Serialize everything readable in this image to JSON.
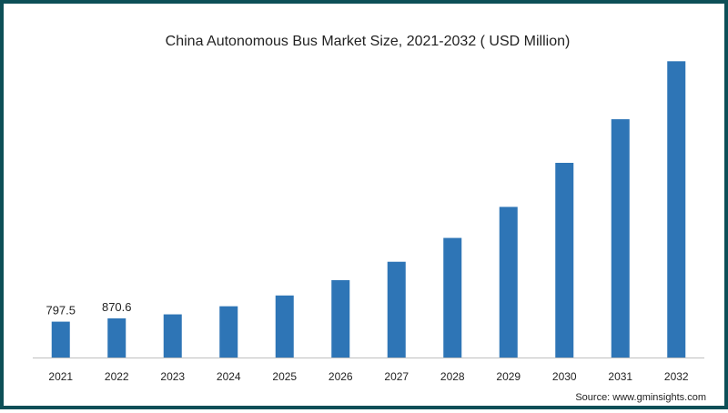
{
  "chart_data": {
    "type": "bar",
    "title": "China Autonomous Bus Market Size, 2021-2032 ( USD Million)",
    "xlabel": "",
    "ylabel": "",
    "categories": [
      "2021",
      "2022",
      "2023",
      "2024",
      "2025",
      "2026",
      "2027",
      "2028",
      "2029",
      "2030",
      "2031",
      "2032"
    ],
    "values": [
      797.5,
      870.6,
      960,
      1140,
      1380,
      1720,
      2130,
      2660,
      3350,
      4330,
      5300,
      6590
    ],
    "data_labels": [
      "797.5",
      "870.6",
      "",
      "",
      "",
      "",
      "",
      "",
      "",
      "",
      "",
      ""
    ],
    "ylim": [
      0,
      6900
    ],
    "grid": false,
    "legend": "none",
    "colors": {
      "bar": "#2e75b6",
      "axis": "#bfbfbf",
      "frame": "#0d4f57",
      "text": "#222222"
    }
  },
  "source": "Source: www.gminsights.com"
}
